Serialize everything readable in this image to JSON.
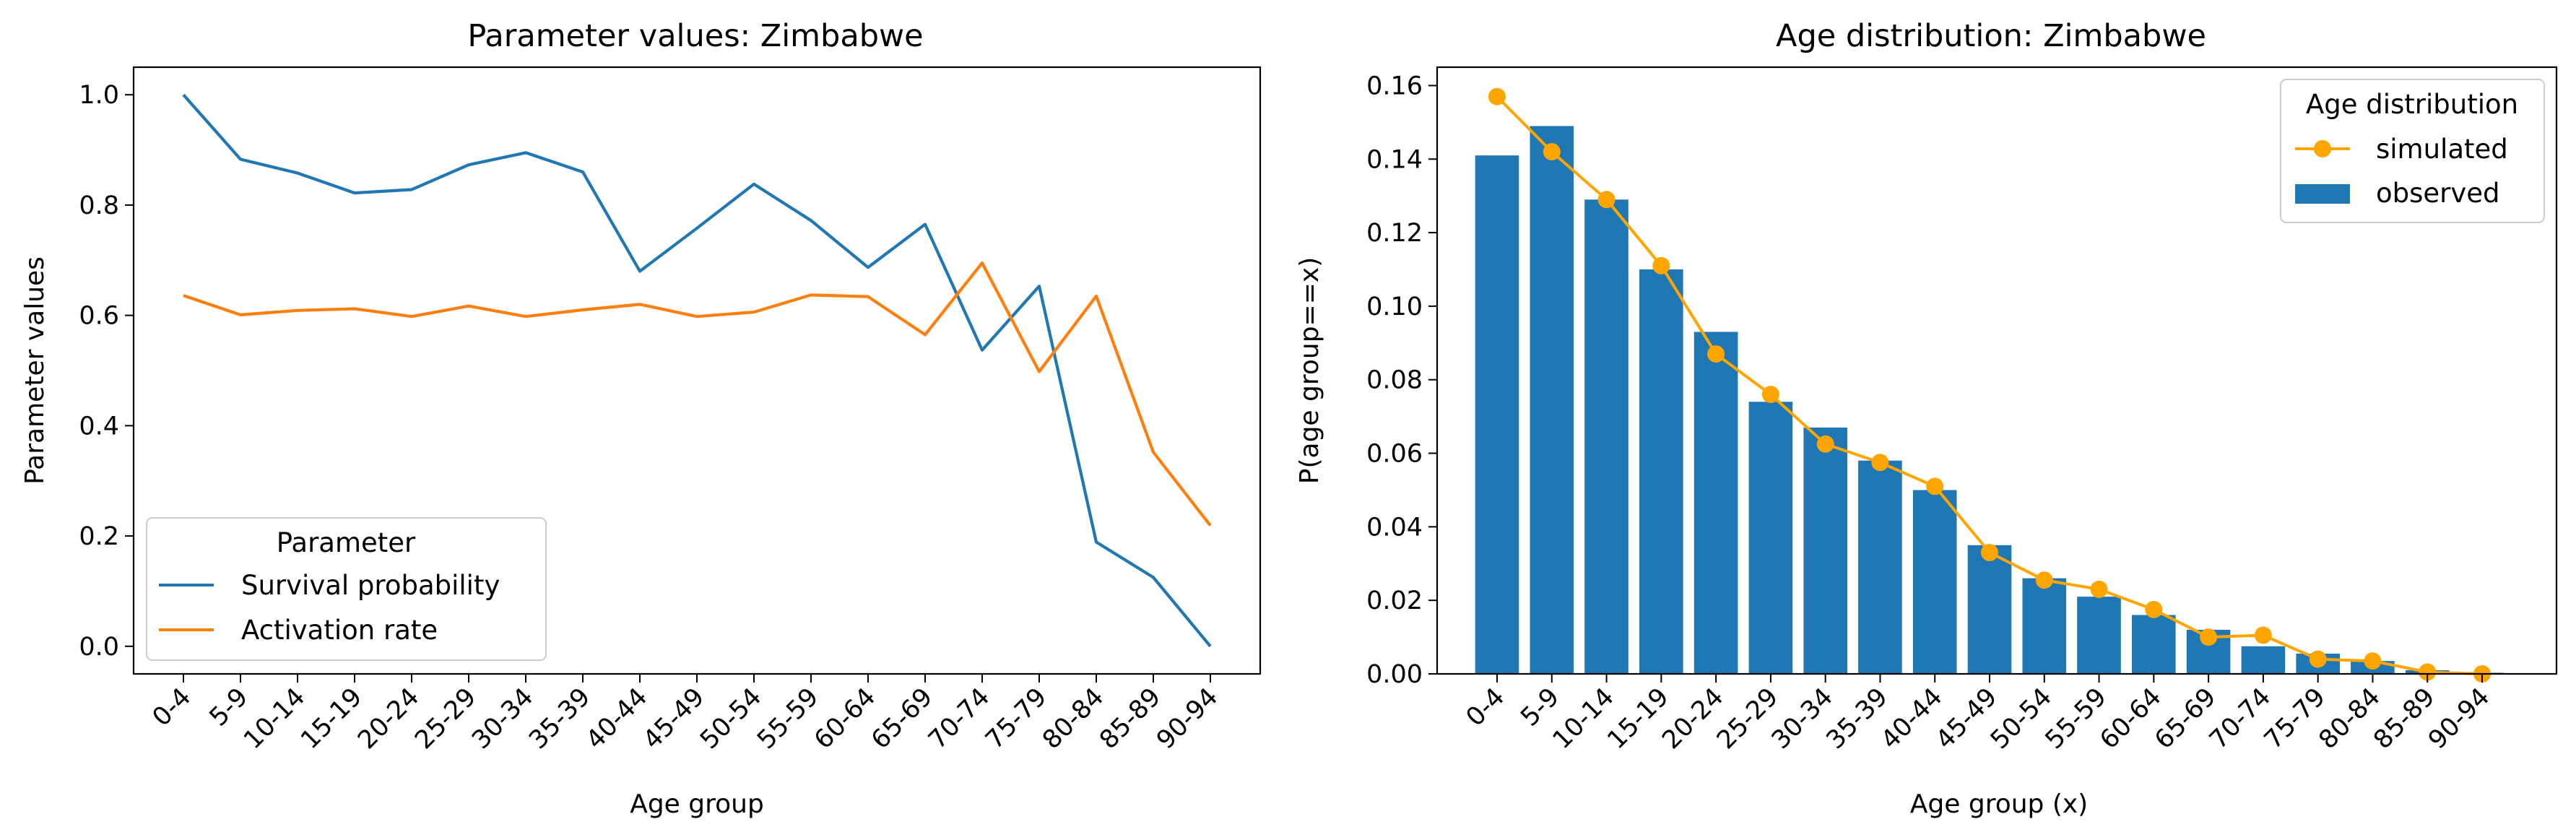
{
  "chart_data": [
    {
      "type": "line",
      "title": "Parameter values: Zimbabwe",
      "xlabel": "Age group",
      "ylabel": "Parameter values",
      "categories": [
        "0-4",
        "5-9",
        "10-14",
        "15-19",
        "20-24",
        "25-29",
        "30-34",
        "35-39",
        "40-44",
        "45-49",
        "50-54",
        "55-59",
        "60-64",
        "65-69",
        "70-74",
        "75-79",
        "80-84",
        "85-89",
        "90-94"
      ],
      "ylim": [
        -0.05,
        1.05
      ],
      "yticks": [
        "0.0",
        "0.2",
        "0.4",
        "0.6",
        "0.8",
        "1.0"
      ],
      "grid": false,
      "legend": {
        "title": "Parameter",
        "placement": "lower-left"
      },
      "series": [
        {
          "name": "Survival probability",
          "color": "#1f77b4",
          "values": [
            1.0,
            0.883,
            0.858,
            0.822,
            0.828,
            0.873,
            0.895,
            0.86,
            0.68,
            0.758,
            0.838,
            0.772,
            0.687,
            0.765,
            0.537,
            0.653,
            0.189,
            0.125,
            0.0
          ]
        },
        {
          "name": "Activation rate",
          "color": "#ff7f0e",
          "values": [
            0.636,
            0.601,
            0.609,
            0.612,
            0.598,
            0.617,
            0.598,
            0.61,
            0.62,
            0.598,
            0.606,
            0.637,
            0.634,
            0.565,
            0.695,
            0.498,
            0.635,
            0.352,
            0.219
          ]
        }
      ]
    },
    {
      "type": "bar",
      "title": "Age distribution: Zimbabwe",
      "xlabel": "Age group (x)",
      "ylabel": "P(age group==x)",
      "categories": [
        "0-4",
        "5-9",
        "10-14",
        "15-19",
        "20-24",
        "25-29",
        "30-34",
        "35-39",
        "40-44",
        "45-49",
        "50-54",
        "55-59",
        "60-64",
        "65-69",
        "70-74",
        "75-79",
        "80-84",
        "85-89",
        "90-94"
      ],
      "ylim": [
        0,
        0.165
      ],
      "yticks": [
        "0.00",
        "0.02",
        "0.04",
        "0.06",
        "0.08",
        "0.10",
        "0.12",
        "0.14",
        "0.16"
      ],
      "grid": false,
      "legend": {
        "title": "Age distribution",
        "placement": "upper-right"
      },
      "series": [
        {
          "name": "observed",
          "kind": "bar",
          "color": "#1f77b4",
          "values": [
            0.141,
            0.149,
            0.129,
            0.11,
            0.093,
            0.074,
            0.067,
            0.058,
            0.05,
            0.035,
            0.026,
            0.021,
            0.016,
            0.012,
            0.0075,
            0.0055,
            0.0035,
            0.001,
            0.0003
          ]
        },
        {
          "name": "simulated",
          "kind": "line-marker",
          "color": "#ffa500",
          "values": [
            0.157,
            0.142,
            0.129,
            0.111,
            0.087,
            0.076,
            0.0625,
            0.0575,
            0.051,
            0.033,
            0.0255,
            0.023,
            0.0175,
            0.01,
            0.0105,
            0.004,
            0.0035,
            0.0005,
            0.0
          ]
        }
      ]
    }
  ]
}
